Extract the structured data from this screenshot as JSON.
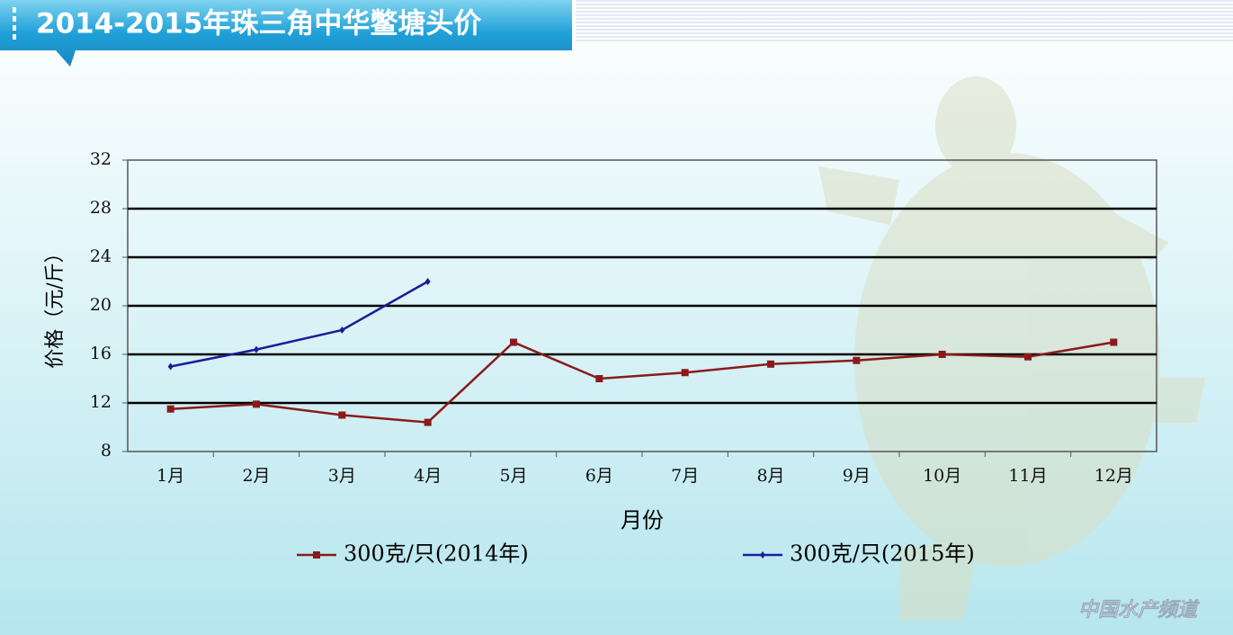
{
  "chart_data": {
    "type": "line",
    "title": "2014-2015年珠三角中华鳖塘头价",
    "x_label": "月份",
    "y_label": "价格（元/斤）",
    "watermark": "中国水产频道",
    "categories": [
      "1月",
      "2月",
      "3月",
      "4月",
      "5月",
      "6月",
      "7月",
      "8月",
      "9月",
      "10月",
      "11月",
      "12月"
    ],
    "series": [
      {
        "name": "300克/只(2014年)",
        "color": "#8b1a1a",
        "marker": "square",
        "values": [
          11.5,
          11.9,
          11,
          10.4,
          17,
          14,
          14.5,
          15.2,
          15.5,
          16,
          15.8,
          17
        ]
      },
      {
        "name": "300克/只(2015年)",
        "color": "#1c1c9a",
        "marker": "diamond",
        "values": [
          15,
          16.4,
          18,
          22,
          null,
          null,
          null,
          null,
          null,
          null,
          null,
          null
        ]
      }
    ],
    "ylim": [
      8,
      32
    ],
    "yticks": [
      8,
      12,
      16,
      20,
      24,
      28,
      32
    ],
    "grid": true
  }
}
